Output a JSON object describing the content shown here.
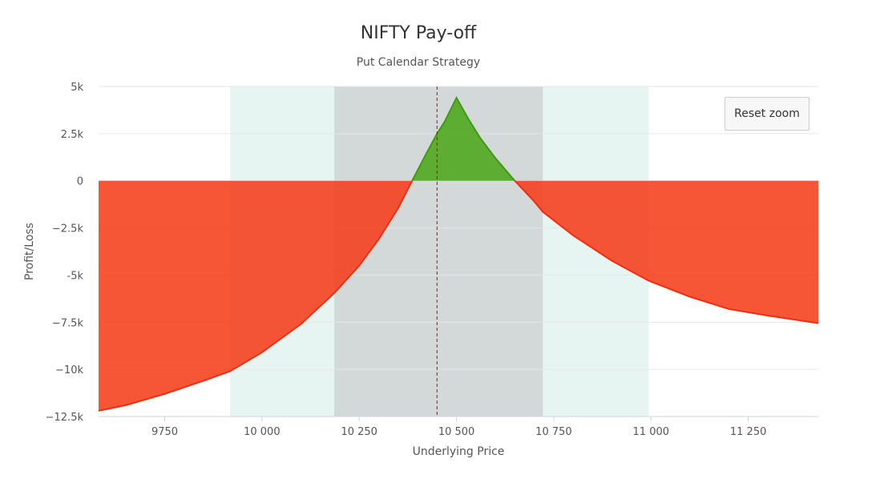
{
  "chart_data": {
    "type": "area",
    "title": "NIFTY Pay-off",
    "subtitle": "Put Calendar Strategy",
    "xlabel": "Underlying Price",
    "ylabel": "Profit/Loss",
    "xlim": [
      9580,
      11430
    ],
    "ylim": [
      -12500,
      5000
    ],
    "x_ticks": [
      9750,
      10000,
      10250,
      10500,
      10750,
      11000,
      11250
    ],
    "x_tick_labels": [
      "9750",
      "10 000",
      "10 250",
      "10 500",
      "10 750",
      "11 000",
      "11 250"
    ],
    "y_ticks": [
      5000,
      2500,
      0,
      -2500,
      -5000,
      -7500,
      -10000,
      -12500
    ],
    "y_tick_labels": [
      "5k",
      "2.5k",
      "0",
      "−2.5k",
      "-5k",
      "−7.5k",
      "−10k",
      "−12.5k"
    ],
    "bands": [
      {
        "from": 9918,
        "to": 10994,
        "color": "#e6f5f2"
      },
      {
        "from": 10186,
        "to": 10722,
        "color": "#d3d9d9"
      }
    ],
    "current_price_line": {
      "x": 10450,
      "color": "#cc0000"
    },
    "profit_color": "#4ca61b",
    "loss_color": "#f53d1a",
    "series": [
      {
        "x": [
          9580,
          9650,
          9750,
          9850,
          9918,
          10000,
          10100,
          10186,
          10250,
          10300,
          10350,
          10386,
          10420,
          10450,
          10470,
          10500,
          10530,
          10560,
          10600,
          10650,
          10700,
          10722,
          10800,
          10900,
          10994,
          11100,
          11200,
          11300,
          11430
        ],
        "y": [
          -12200,
          -11900,
          -11300,
          -10600,
          -10100,
          -9100,
          -7600,
          -5950,
          -4500,
          -3100,
          -1450,
          0,
          1350,
          2500,
          3150,
          4400,
          3300,
          2300,
          1200,
          0,
          -1100,
          -1650,
          -2900,
          -4250,
          -5300,
          -6150,
          -6800,
          -7150,
          -7550
        ]
      }
    ]
  },
  "reset_zoom_label": "Reset zoom"
}
